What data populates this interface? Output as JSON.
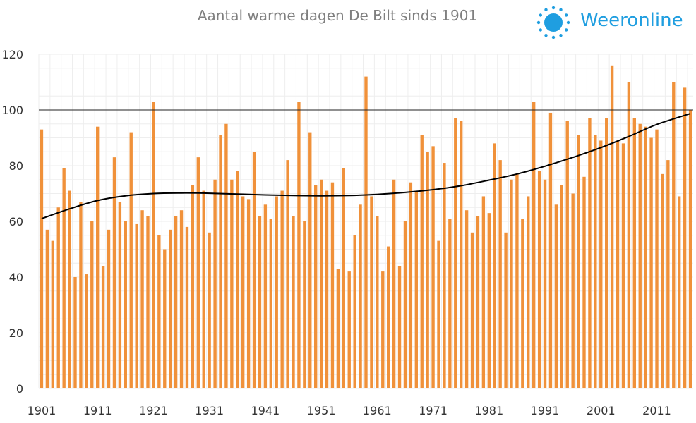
{
  "chart_data": {
    "type": "bar",
    "title": "Aantal warme dagen De Bilt sinds 1901",
    "xlabel": "",
    "ylabel": "",
    "ylim": [
      0,
      120
    ],
    "yticks": [
      0,
      20,
      40,
      60,
      80,
      100,
      120
    ],
    "xtick_labels": [
      "1901",
      "1911",
      "1921",
      "1931",
      "1941",
      "1951",
      "1961",
      "1971",
      "1981",
      "1991",
      "2001",
      "2011"
    ],
    "reference_line": 100,
    "grid": true,
    "bar_color": "#f0913a",
    "trend_color": "#000000",
    "x": [
      1901,
      1902,
      1903,
      1904,
      1905,
      1906,
      1907,
      1908,
      1909,
      1910,
      1911,
      1912,
      1913,
      1914,
      1915,
      1916,
      1917,
      1918,
      1919,
      1920,
      1921,
      1922,
      1923,
      1924,
      1925,
      1926,
      1927,
      1928,
      1929,
      1930,
      1931,
      1932,
      1933,
      1934,
      1935,
      1936,
      1937,
      1938,
      1939,
      1940,
      1941,
      1942,
      1943,
      1944,
      1945,
      1946,
      1947,
      1948,
      1949,
      1950,
      1951,
      1952,
      1953,
      1954,
      1955,
      1956,
      1957,
      1958,
      1959,
      1960,
      1961,
      1962,
      1963,
      1964,
      1965,
      1966,
      1967,
      1968,
      1969,
      1970,
      1971,
      1972,
      1973,
      1974,
      1975,
      1976,
      1977,
      1978,
      1979,
      1980,
      1981,
      1982,
      1983,
      1984,
      1985,
      1986,
      1987,
      1988,
      1989,
      1990,
      1991,
      1992,
      1993,
      1994,
      1995,
      1996,
      1997,
      1998,
      1999,
      2000,
      2001,
      2002,
      2003,
      2004,
      2005,
      2006,
      2007,
      2008,
      2009,
      2010,
      2011,
      2012,
      2013,
      2014,
      2015,
      2016,
      2017
    ],
    "values": [
      93,
      57,
      53,
      65,
      79,
      71,
      40,
      67,
      41,
      60,
      94,
      44,
      57,
      83,
      67,
      60,
      92,
      59,
      64,
      62,
      103,
      55,
      50,
      57,
      62,
      64,
      58,
      73,
      83,
      71,
      56,
      75,
      91,
      95,
      75,
      78,
      69,
      68,
      85,
      62,
      66,
      61,
      69,
      71,
      82,
      62,
      103,
      60,
      92,
      73,
      75,
      71,
      74,
      43,
      79,
      42,
      55,
      66,
      112,
      69,
      62,
      42,
      51,
      75,
      44,
      60,
      74,
      71,
      91,
      85,
      87,
      53,
      81,
      61,
      97,
      96,
      64,
      56,
      62,
      69,
      63,
      88,
      82,
      56,
      75,
      77,
      61,
      69,
      103,
      78,
      75,
      99,
      66,
      73,
      96,
      70,
      91,
      76,
      97,
      91,
      89,
      97,
      116,
      89,
      88,
      110,
      97,
      95,
      94,
      90,
      93,
      77,
      82,
      110,
      69,
      108,
      100
    ],
    "trend": [
      [
        1901,
        61
      ],
      [
        1906,
        64.5
      ],
      [
        1911,
        67.5
      ],
      [
        1916,
        69.2
      ],
      [
        1921,
        70
      ],
      [
        1926,
        70.2
      ],
      [
        1931,
        70.1
      ],
      [
        1936,
        69.8
      ],
      [
        1941,
        69.5
      ],
      [
        1946,
        69.3
      ],
      [
        1951,
        69.2
      ],
      [
        1956,
        69.3
      ],
      [
        1961,
        69.7
      ],
      [
        1966,
        70.4
      ],
      [
        1971,
        71.4
      ],
      [
        1976,
        72.8
      ],
      [
        1981,
        74.8
      ],
      [
        1986,
        77
      ],
      [
        1991,
        79.8
      ],
      [
        1996,
        83
      ],
      [
        2001,
        86.5
      ],
      [
        2006,
        90.5
      ],
      [
        2011,
        94.8
      ],
      [
        2017,
        98.7
      ]
    ]
  },
  "brand": {
    "name": "Weeronline",
    "accent": "#1f9ee0",
    "icon": "sun-icon"
  }
}
